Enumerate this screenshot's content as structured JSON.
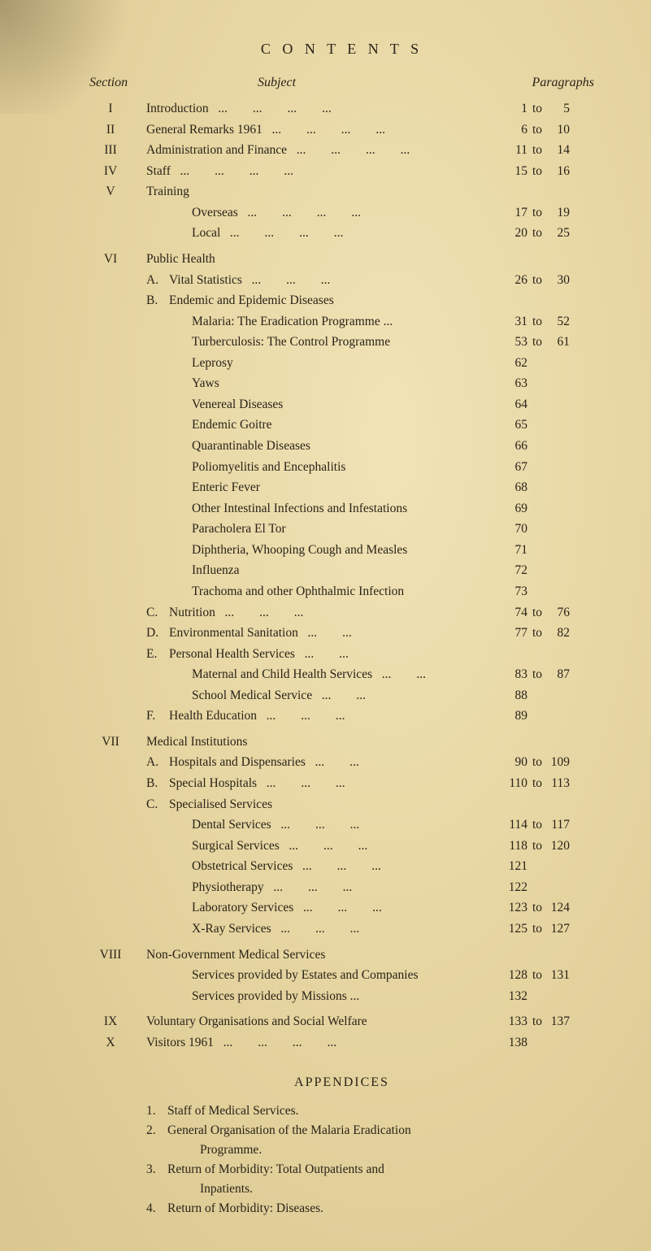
{
  "title": "C O N T E N T S",
  "headers": {
    "section": "Section",
    "subject": "Subject",
    "paragraphs": "Paragraphs"
  },
  "sections": [
    {
      "num": "I",
      "label": "Introduction",
      "from": "1",
      "to": "5"
    },
    {
      "num": "II",
      "label": "General Remarks 1961",
      "from": "6",
      "to": "10"
    },
    {
      "num": "III",
      "label": "Administration and Finance",
      "from": "11",
      "to": "14"
    },
    {
      "num": "IV",
      "label": "Staff",
      "from": "15",
      "to": "16"
    }
  ],
  "sectionV": {
    "num": "V",
    "label": "Training",
    "items": [
      {
        "label": "Overseas",
        "from": "17",
        "to": "19"
      },
      {
        "label": "Local",
        "from": "20",
        "to": "25"
      }
    ]
  },
  "sectionVI": {
    "num": "VI",
    "label": "Public Health",
    "A": {
      "letter": "A.",
      "label": "Vital Statistics",
      "from": "26",
      "to": "30"
    },
    "B": {
      "letter": "B.",
      "label": "Endemic and Epidemic Diseases",
      "items": [
        {
          "label": "Malaria: The Eradication Programme ...",
          "from": "31",
          "to": "52"
        },
        {
          "label": "Turberculosis: The Control Programme",
          "from": "53",
          "to": "61"
        },
        {
          "label": "Leprosy",
          "from": "62"
        },
        {
          "label": "Yaws",
          "from": "63"
        },
        {
          "label": "Venereal Diseases",
          "from": "64"
        },
        {
          "label": "Endemic Goitre",
          "from": "65"
        },
        {
          "label": "Quarantinable Diseases",
          "from": "66"
        },
        {
          "label": "Poliomyelitis and Encephalitis",
          "from": "67"
        },
        {
          "label": "Enteric Fever",
          "from": "68"
        },
        {
          "label": "Other Intestinal Infections and Infestations",
          "from": "69"
        },
        {
          "label": "Paracholera El Tor",
          "from": "70"
        },
        {
          "label": "Diphtheria, Whooping Cough and Measles",
          "from": "71"
        },
        {
          "label": "Influenza",
          "from": "72"
        },
        {
          "label": "Trachoma and other Ophthalmic Infection",
          "from": "73"
        }
      ]
    },
    "C": {
      "letter": "C.",
      "label": "Nutrition",
      "from": "74",
      "to": "76"
    },
    "D": {
      "letter": "D.",
      "label": "Environmental Sanitation",
      "from": "77",
      "to": "82"
    },
    "E": {
      "letter": "E.",
      "label": "Personal Health Services",
      "items": [
        {
          "label": "Maternal and Child Health Services",
          "from": "83",
          "to": "87"
        },
        {
          "label": "School Medical Service",
          "from": "88"
        }
      ]
    },
    "F": {
      "letter": "F.",
      "label": "Health Education",
      "from": "89"
    }
  },
  "sectionVII": {
    "num": "VII",
    "label": "Medical Institutions",
    "A": {
      "letter": "A.",
      "label": "Hospitals and Dispensaries",
      "from": "90",
      "to": "109"
    },
    "B": {
      "letter": "B.",
      "label": "Special Hospitals",
      "from": "110",
      "to": "113"
    },
    "C": {
      "letter": "C.",
      "label": "Specialised Services",
      "items": [
        {
          "label": "Dental Services",
          "from": "114",
          "to": "117"
        },
        {
          "label": "Surgical Services",
          "from": "118",
          "to": "120"
        },
        {
          "label": "Obstetrical Services",
          "from": "121"
        },
        {
          "label": "Physiotherapy",
          "from": "122"
        },
        {
          "label": "Laboratory Services",
          "from": "123",
          "to": "124"
        },
        {
          "label": "X-Ray Services",
          "from": "125",
          "to": "127"
        }
      ]
    }
  },
  "sectionVIII": {
    "num": "VIII",
    "label": "Non-Government Medical Services",
    "items": [
      {
        "label": "Services provided by Estates and Companies",
        "from": "128",
        "to": "131"
      },
      {
        "label": "Services provided by Missions ...",
        "from": "132"
      }
    ]
  },
  "sectionIX": {
    "num": "IX",
    "label": "Voluntary Organisations and Social Welfare",
    "from": "133",
    "to": "137"
  },
  "sectionX": {
    "num": "X",
    "label": "Visitors 1961",
    "from": "138"
  },
  "appendicesTitle": "APPENDICES",
  "appendices": [
    {
      "num": "1.",
      "text": "Staff of Medical Services."
    },
    {
      "num": "2.",
      "text": "General Organisation of the Malaria Eradication",
      "cont": "Programme."
    },
    {
      "num": "3.",
      "text": "Return of Morbidity: Total Outpatients and",
      "cont": "Inpatients."
    },
    {
      "num": "4.",
      "text": "Return of Morbidity: Diseases."
    }
  ],
  "toWord": "to"
}
